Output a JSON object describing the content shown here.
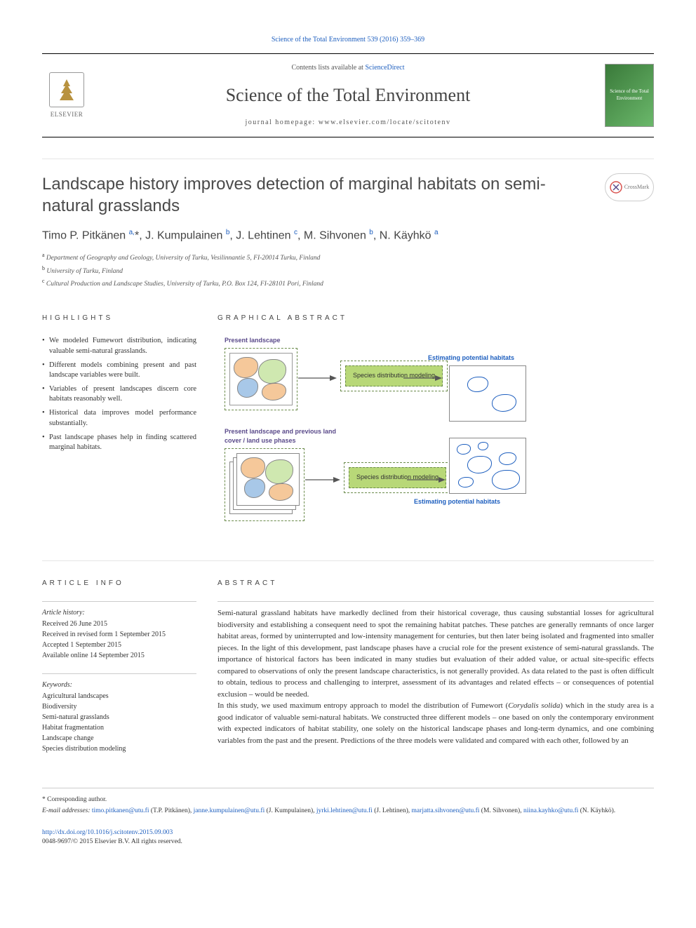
{
  "citation": "Science of the Total Environment 539 (2016) 359–369",
  "header": {
    "contents_prefix": "Contents lists available at ",
    "contents_link": "ScienceDirect",
    "journal": "Science of the Total Environment",
    "homepage_prefix": "journal homepage: ",
    "homepage_url": "www.elsevier.com/locate/scitotenv",
    "elsevier": "ELSEVIER",
    "cover_text": "Science of the Total Environment"
  },
  "title": "Landscape history improves detection of marginal habitats on semi-natural grasslands",
  "crossmark": "CrossMark",
  "authors_html": "Timo P. Pitkänen <sup>a,</sup>*, J. Kumpulainen <sup>b</sup>, J. Lehtinen <sup>c</sup>, M. Sihvonen <sup>b</sup>, N. Käyhkö <sup>a</sup>",
  "affiliations": [
    {
      "sup": "a",
      "text": "Department of Geography and Geology, University of Turku, Vesilinnantie 5, FI-20014 Turku, Finland"
    },
    {
      "sup": "b",
      "text": "University of Turku, Finland"
    },
    {
      "sup": "c",
      "text": "Cultural Production and Landscape Studies, University of Turku, P.O. Box 124, FI-28101 Pori, Finland"
    }
  ],
  "highlights_head": "HIGHLIGHTS",
  "highlights": [
    "We modeled Fumewort distribution, indicating valuable semi-natural grasslands.",
    "Different models combining present and past landscape variables were built.",
    "Variables of present landscapes discern core habitats reasonably well.",
    "Historical data improves model performance substantially.",
    "Past landscape phases help in finding scattered marginal habitats."
  ],
  "graphical_head": "GRAPHICAL ABSTRACT",
  "ga": {
    "present_label": "Present landscape",
    "model_box": "Species distribution modeling",
    "estimate_label": "Estimating potential habitats",
    "past_label": "Present landscape and previous land cover / land use phases",
    "colors": {
      "land1": "#f5c89a",
      "land2": "#cfe8b0",
      "water": "#a8c8e8",
      "dashed": "#6a8a4a",
      "model_bg": "#b8d878",
      "blue_text": "#1e5fbf",
      "purple_text": "#5a4a8a"
    }
  },
  "article_info_head": "ARTICLE INFO",
  "article_history_head": "Article history:",
  "article_history": [
    "Received 26 June 2015",
    "Received in revised form 1 September 2015",
    "Accepted 1 September 2015",
    "Available online 14 September 2015"
  ],
  "keywords_head": "Keywords:",
  "keywords": [
    "Agricultural landscapes",
    "Biodiversity",
    "Semi-natural grasslands",
    "Habitat fragmentation",
    "Landscape change",
    "Species distribution modeling"
  ],
  "abstract_head": "ABSTRACT",
  "abstract_p1": "Semi-natural grassland habitats have markedly declined from their historical coverage, thus causing substantial losses for agricultural biodiversity and establishing a consequent need to spot the remaining habitat patches. These patches are generally remnants of once larger habitat areas, formed by uninterrupted and low-intensity management for centuries, but then later being isolated and fragmented into smaller pieces. In the light of this development, past landscape phases have a crucial role for the present existence of semi-natural grasslands. The importance of historical factors has been indicated in many studies but evaluation of their added value, or actual site-specific effects compared to observations of only the present landscape characteristics, is not generally provided. As data related to the past is often difficult to obtain, tedious to process and challenging to interpret, assessment of its advantages and related effects – or consequences of potential exclusion – would be needed.",
  "abstract_p2_pre": "In this study, we used maximum entropy approach to model the distribution of Fumewort (",
  "abstract_species": "Corydalis solida",
  "abstract_p2_post": ") which in the study area is a good indicator of valuable semi-natural habitats. We constructed three different models – one based on only the contemporary environment with expected indicators of habitat stability, one solely on the historical landscape phases and long-term dynamics, and one combining variables from the past and the present. Predictions of the three models were validated and compared with each other, followed by an",
  "footnotes": {
    "corresponding": "Corresponding author.",
    "email_label": "E-mail addresses:",
    "emails": [
      {
        "addr": "timo.pitkanen@utu.fi",
        "who": "(T.P. Pitkänen)"
      },
      {
        "addr": "janne.kumpulainen@utu.fi",
        "who": "(J. Kumpulainen)"
      },
      {
        "addr": "jyrki.lehtinen@utu.fi",
        "who": "(J. Lehtinen)"
      },
      {
        "addr": "marjatta.sihvonen@utu.fi",
        "who": "(M. Sihvonen)"
      },
      {
        "addr": "niina.kayhko@utu.fi",
        "who": "(N. Käyhkö)."
      }
    ]
  },
  "doi": "http://dx.doi.org/10.1016/j.scitotenv.2015.09.003",
  "copyright": "0048-9697/© 2015 Elsevier B.V. All rights reserved."
}
